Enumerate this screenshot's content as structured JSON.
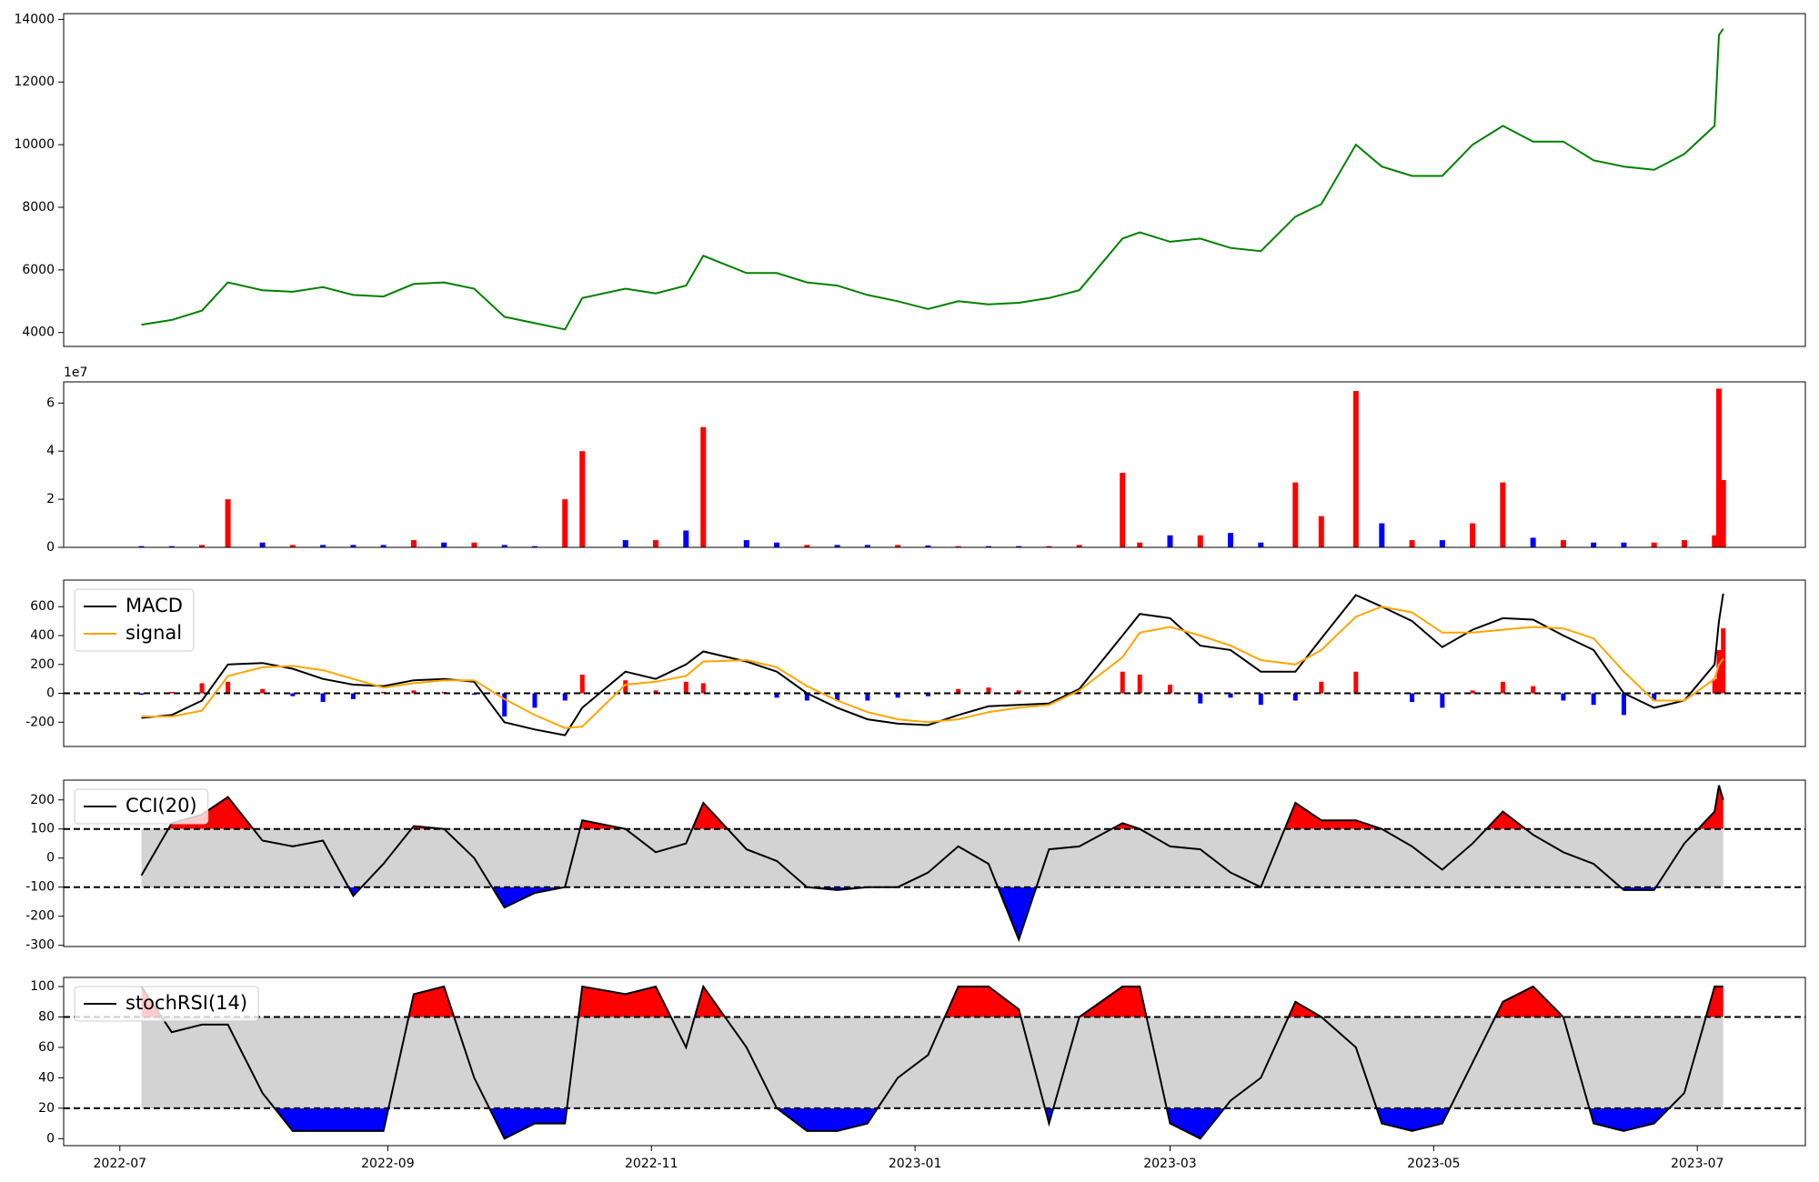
{
  "chart_data": [
    {
      "type": "line",
      "x": [
        "2022-07-06",
        "2022-07-13",
        "2022-07-20",
        "2022-07-26",
        "2022-08-03",
        "2022-08-10",
        "2022-08-17",
        "2022-08-24",
        "2022-08-31",
        "2022-09-07",
        "2022-09-14",
        "2022-09-21",
        "2022-09-28",
        "2022-10-05",
        "2022-10-12",
        "2022-10-16",
        "2022-10-26",
        "2022-11-02",
        "2022-11-09",
        "2022-11-13",
        "2022-11-23",
        "2022-11-30",
        "2022-12-07",
        "2022-12-14",
        "2022-12-21",
        "2022-12-28",
        "2023-01-04",
        "2023-01-11",
        "2023-01-18",
        "2023-01-25",
        "2023-02-01",
        "2023-02-08",
        "2023-02-18",
        "2023-02-22",
        "2023-03-01",
        "2023-03-08",
        "2023-03-15",
        "2023-03-22",
        "2023-03-30",
        "2023-04-05",
        "2023-04-13",
        "2023-04-19",
        "2023-04-26",
        "2023-05-03",
        "2023-05-10",
        "2023-05-17",
        "2023-05-24",
        "2023-05-31",
        "2023-06-07",
        "2023-06-14",
        "2023-06-21",
        "2023-06-28",
        "2023-07-05",
        "2023-07-06",
        "2023-07-07"
      ],
      "xlim": [
        "2022-06-18",
        "2023-07-26"
      ],
      "series": [
        {
          "color": "green",
          "values": [
            4250,
            4400,
            4700,
            5600,
            5350,
            5300,
            5450,
            5200,
            5150,
            5550,
            5600,
            5400,
            4500,
            4300,
            4100,
            5100,
            5400,
            5250,
            5500,
            6450,
            5900,
            5900,
            5600,
            5500,
            5200,
            5000,
            4750,
            5000,
            4900,
            4950,
            5100,
            5350,
            7000,
            7200,
            6900,
            7000,
            6700,
            6600,
            7700,
            8100,
            10000,
            9300,
            9000,
            9000,
            10000,
            10600,
            10100,
            10100,
            9500,
            9300,
            9200,
            9700,
            10600,
            13500,
            13700
          ]
        }
      ],
      "ylim": [
        3556,
        14185
      ],
      "yticks": [
        4000,
        6000,
        8000,
        10000,
        12000,
        14000
      ]
    },
    {
      "type": "bar",
      "values": [
        500000,
        500000,
        1000000,
        20000000,
        2000000,
        1000000,
        1000000,
        1000000,
        1000000,
        3000000,
        2000000,
        2000000,
        1000000,
        500000,
        20000000,
        40000000,
        3000000,
        3000000,
        7000000,
        50000000,
        3000000,
        2000000,
        1000000,
        1000000,
        1000000,
        1000000,
        800000,
        500000,
        500000,
        500000,
        500000,
        1000000,
        31000000,
        2000000,
        5000000,
        5000000,
        6000000,
        2000000,
        27000000,
        13000000,
        65000000,
        10000000,
        3000000,
        3000000,
        10000000,
        27000000,
        4000000,
        3000000,
        2000000,
        2000000,
        2000000,
        3000000,
        5000000,
        66000000,
        28000000
      ],
      "bar_colors": [
        "blue",
        "blue",
        "red",
        "red",
        "blue",
        "red",
        "blue",
        "blue",
        "blue",
        "red",
        "blue",
        "red",
        "blue",
        "blue",
        "red",
        "red",
        "blue",
        "red",
        "blue",
        "red",
        "blue",
        "blue",
        "red",
        "blue",
        "blue",
        "red",
        "blue",
        "red",
        "blue",
        "blue",
        "red",
        "red",
        "red",
        "red",
        "blue",
        "red",
        "blue",
        "blue",
        "red",
        "red",
        "red",
        "blue",
        "red",
        "blue",
        "red",
        "red",
        "blue",
        "red",
        "blue",
        "blue",
        "red",
        "red",
        "red",
        "red",
        "red"
      ],
      "offset_label": "1e7",
      "ylim": [
        0,
        68800000
      ],
      "yticks": [
        0,
        {
          "value": 20000000,
          "label": "2"
        },
        {
          "value": 40000000,
          "label": "4"
        },
        {
          "value": 60000000,
          "label": "6"
        }
      ]
    },
    {
      "type": "macd",
      "series": [
        {
          "name": "MACD",
          "color": "black",
          "values": [
            -170,
            -150,
            -50,
            200,
            210,
            170,
            100,
            60,
            50,
            90,
            100,
            80,
            -200,
            -250,
            -290,
            -100,
            150,
            100,
            200,
            290,
            220,
            150,
            0,
            -100,
            -180,
            -210,
            -220,
            -150,
            -90,
            -80,
            -70,
            30,
            400,
            550,
            520,
            330,
            300,
            150,
            150,
            380,
            680,
            600,
            500,
            320,
            440,
            520,
            510,
            400,
            300,
            0,
            -100,
            -50,
            200,
            500,
            690
          ]
        },
        {
          "name": "signal",
          "color": "orange",
          "values": [
            -160,
            -160,
            -120,
            120,
            180,
            190,
            160,
            100,
            40,
            70,
            90,
            90,
            -40,
            -150,
            -240,
            -230,
            60,
            80,
            120,
            220,
            230,
            180,
            50,
            -50,
            -130,
            -180,
            -200,
            -180,
            -130,
            -100,
            -80,
            20,
            250,
            420,
            460,
            400,
            330,
            230,
            200,
            300,
            530,
            600,
            560,
            420,
            420,
            440,
            460,
            450,
            380,
            150,
            -50,
            -50,
            100,
            200,
            240
          ]
        }
      ],
      "histogram": [
        -10,
        10,
        70,
        80,
        30,
        -20,
        -60,
        -40,
        10,
        20,
        10,
        -10,
        -160,
        -100,
        -50,
        130,
        90,
        20,
        80,
        70,
        -10,
        -30,
        -50,
        -50,
        -50,
        -30,
        -20,
        30,
        40,
        20,
        10,
        10,
        150,
        130,
        60,
        -70,
        -30,
        -80,
        -50,
        80,
        150,
        0,
        -60,
        -100,
        20,
        80,
        50,
        -50,
        -80,
        -150,
        -50,
        0,
        100,
        300,
        450
      ],
      "pos_color": "red",
      "neg_color": "blue",
      "zero_line": "dashed",
      "legend": "upper left",
      "ylim": [
        -368,
        784
      ],
      "yticks": [
        -200,
        0,
        200,
        400,
        600
      ]
    },
    {
      "type": "band",
      "series": [
        {
          "name": "CCI(20)",
          "color": "black",
          "values": [
            -60,
            120,
            150,
            210,
            60,
            40,
            60,
            -130,
            -20,
            110,
            100,
            0,
            -170,
            -120,
            -100,
            130,
            100,
            20,
            50,
            190,
            30,
            -10,
            -100,
            -110,
            -100,
            -100,
            -50,
            40,
            -20,
            -280,
            30,
            40,
            120,
            100,
            40,
            30,
            -50,
            -100,
            190,
            130,
            130,
            100,
            40,
            -40,
            50,
            160,
            80,
            20,
            -20,
            -110,
            -110,
            50,
            160,
            250,
            200
          ]
        }
      ],
      "levels": [
        -100,
        100
      ],
      "above_color": "red",
      "below_color": "blue",
      "band_color": "lightgray",
      "legend": "upper left",
      "ylim": [
        -304,
        268
      ],
      "yticks": [
        -300,
        -200,
        -100,
        0,
        100,
        200
      ]
    },
    {
      "type": "band",
      "series": [
        {
          "name": "stochRSI(14)",
          "color": "black",
          "values": [
            100,
            70,
            75,
            75,
            30,
            5,
            5,
            5,
            5,
            95,
            100,
            40,
            0,
            10,
            10,
            100,
            95,
            100,
            60,
            100,
            60,
            20,
            5,
            5,
            10,
            40,
            55,
            100,
            100,
            85,
            10,
            80,
            100,
            100,
            10,
            0,
            25,
            40,
            90,
            80,
            60,
            10,
            5,
            10,
            50,
            90,
            100,
            80,
            10,
            5,
            10,
            30,
            100,
            100,
            100
          ]
        }
      ],
      "levels": [
        20,
        80
      ],
      "above_color": "red",
      "below_color": "blue",
      "band_color": "lightgray",
      "legend": "upper left",
      "ylim": [
        -4.6,
        106
      ],
      "yticks": [
        0,
        20,
        40,
        60,
        80,
        100
      ],
      "xticks": [
        "2022-07",
        "2022-09",
        "2022-11",
        "2023-01",
        "2023-03",
        "2023-05",
        "2023-07"
      ]
    }
  ]
}
